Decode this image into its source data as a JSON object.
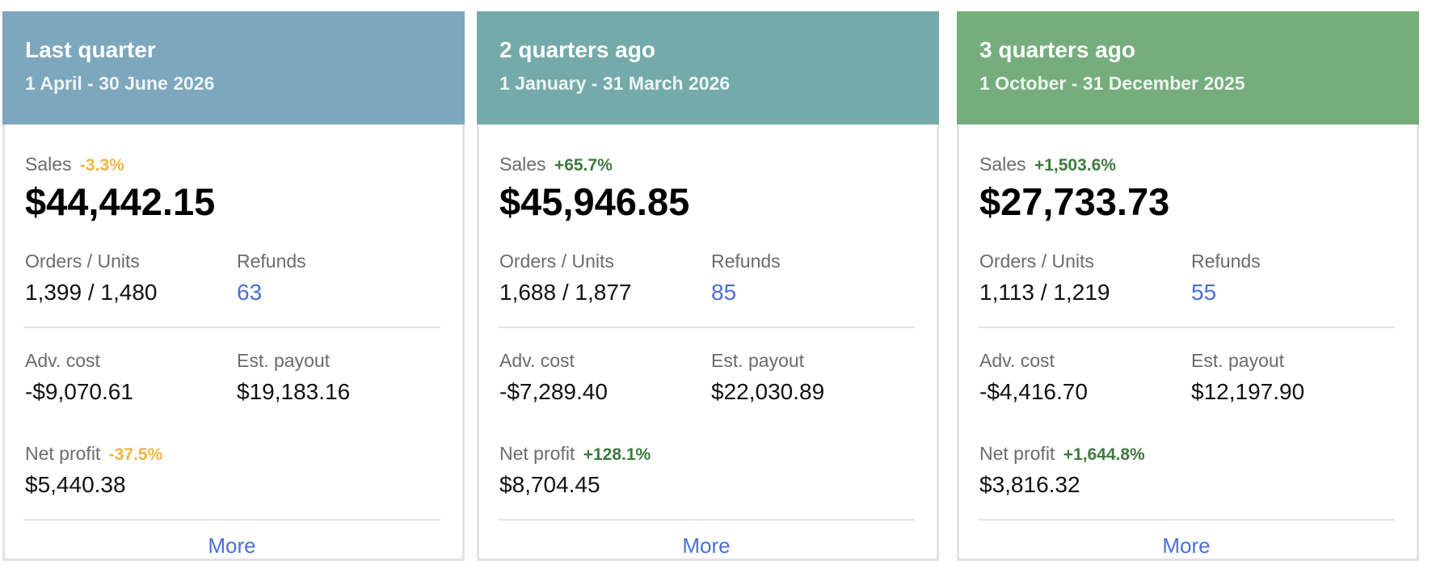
{
  "cards": [
    {
      "title": "Last quarter",
      "subtitle": "1 April - 30 June 2026",
      "header_color": "#7da7bd",
      "sales_label": "Sales",
      "sales_change": "-3.3%",
      "sales_change_trend": "negative",
      "sales_value": "$44,442.15",
      "orders_units_label": "Orders / Units",
      "orders_units_value": "1,399 / 1,480",
      "refunds_label": "Refunds",
      "refunds_value": "63",
      "adv_cost_label": "Adv. cost",
      "adv_cost_value": "-$9,070.61",
      "est_payout_label": "Est. payout",
      "est_payout_value": "$19,183.16",
      "net_profit_label": "Net profit",
      "net_profit_change": "-37.5%",
      "net_profit_change_trend": "negative",
      "net_profit_value": "$5,440.38",
      "more_label": "More"
    },
    {
      "title": "2 quarters ago",
      "subtitle": "1 January - 31 March 2026",
      "header_color": "#74aaaa",
      "sales_label": "Sales",
      "sales_change": "+65.7%",
      "sales_change_trend": "positive",
      "sales_value": "$45,946.85",
      "orders_units_label": "Orders / Units",
      "orders_units_value": "1,688 / 1,877",
      "refunds_label": "Refunds",
      "refunds_value": "85",
      "adv_cost_label": "Adv. cost",
      "adv_cost_value": "-$7,289.40",
      "est_payout_label": "Est. payout",
      "est_payout_value": "$22,030.89",
      "net_profit_label": "Net profit",
      "net_profit_change": "+128.1%",
      "net_profit_change_trend": "positive",
      "net_profit_value": "$8,704.45",
      "more_label": "More"
    },
    {
      "title": "3 quarters ago",
      "subtitle": "1 October - 31 December 2025",
      "header_color": "#76ad7c",
      "sales_label": "Sales",
      "sales_change": "+1,503.6%",
      "sales_change_trend": "positive",
      "sales_value": "$27,733.73",
      "orders_units_label": "Orders / Units",
      "orders_units_value": "1,113 / 1,219",
      "refunds_label": "Refunds",
      "refunds_value": "55",
      "adv_cost_label": "Adv. cost",
      "adv_cost_value": "-$4,416.70",
      "est_payout_label": "Est. payout",
      "est_payout_value": "$12,197.90",
      "net_profit_label": "Net profit",
      "net_profit_change": "+1,644.8%",
      "net_profit_change_trend": "positive",
      "net_profit_value": "$3,816.32",
      "more_label": "More"
    }
  ],
  "colors": {
    "negative_change": "#f0b442",
    "positive_change": "#3f7a3f",
    "link": "#4a6fd9"
  }
}
